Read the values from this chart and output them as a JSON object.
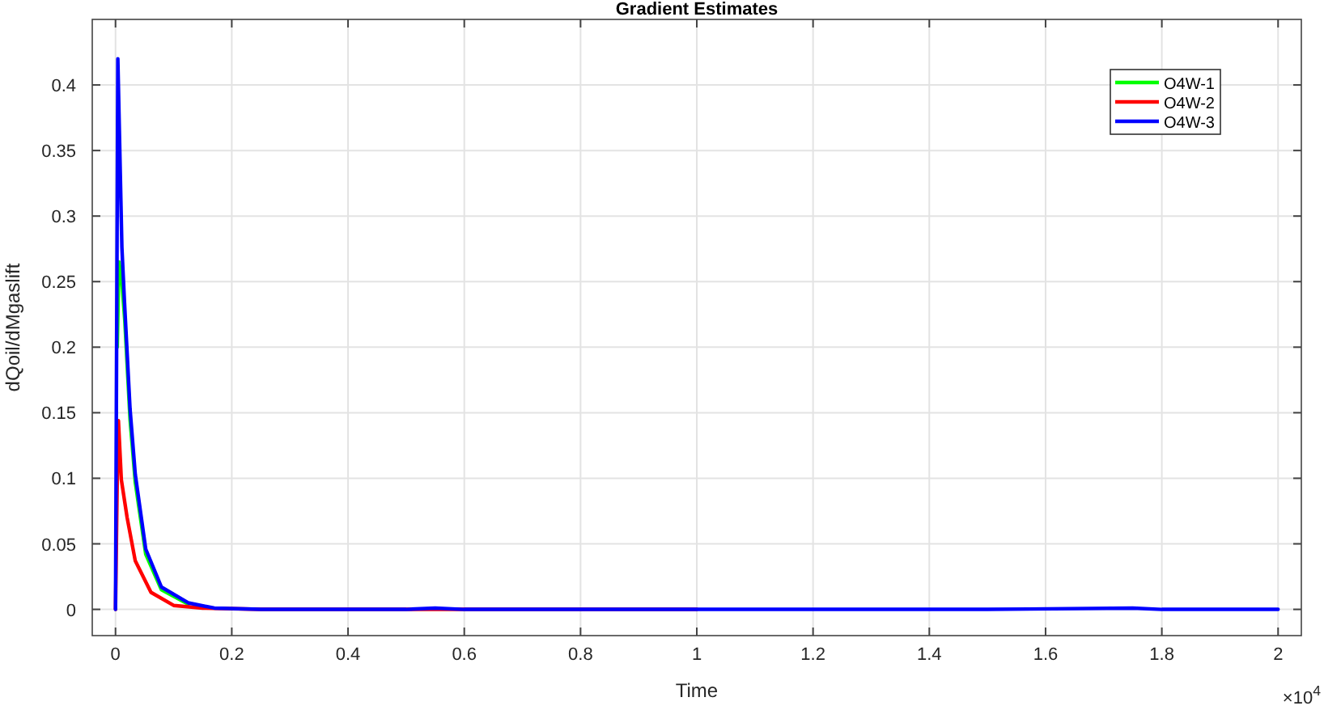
{
  "chart_data": {
    "type": "line",
    "title": "Gradient Estimates",
    "xlabel": "Time",
    "ylabel": "dQoil/dMgaslift",
    "annotations": [
      "×10$^{4}$"
    ],
    "xlim": [
      -0.04,
      2.04
    ],
    "xticks": [
      0,
      0.2,
      0.4,
      0.6,
      0.8,
      1,
      1.2,
      1.4,
      1.6,
      1.8,
      2
    ],
    "ylim": [
      -0.02,
      0.45
    ],
    "yticks": [
      0,
      0.05,
      0.1,
      0.15,
      0.2,
      0.25,
      0.3,
      0.35,
      0.4
    ],
    "grid": true,
    "legend": "top right",
    "line_style": "solid",
    "marker": "none",
    "series": [
      {
        "name": "O4W-1",
        "color": "#00ff00",
        "x": [
          0.003,
          0.006,
          0.011,
          0.016,
          0.025,
          0.034,
          0.052,
          0.079,
          0.125
        ],
        "values": [
          0.2,
          0.265,
          0.25,
          0.22,
          0.145,
          0.097,
          0.042,
          0.015,
          0.004
        ]
      },
      {
        "name": "O4W-2",
        "color": "#ff0000",
        "x": [
          0,
          0.003,
          0.005,
          0.01,
          0.02,
          0.034,
          0.061,
          0.1,
          0.15,
          0.25,
          0.5,
          1
        ],
        "values": [
          0,
          0.1,
          0.144,
          0.099,
          0.07,
          0.037,
          0.013,
          0.003,
          0.001,
          0,
          0,
          0
        ]
      },
      {
        "name": "O4W-3",
        "color": "#0000ff",
        "x": [
          0,
          0.004,
          0.011,
          0.0155,
          0.025,
          0.034,
          0.052,
          0.079,
          0.125,
          0.17,
          0.25,
          0.5,
          0.55,
          0.6,
          1,
          1.5,
          1.75,
          1.8,
          2
        ],
        "values": [
          0,
          0.42,
          0.276,
          0.234,
          0.153,
          0.103,
          0.046,
          0.017,
          0.005,
          0.001,
          0,
          0,
          0.001,
          0,
          0,
          0,
          0.001,
          0,
          0
        ]
      }
    ]
  }
}
